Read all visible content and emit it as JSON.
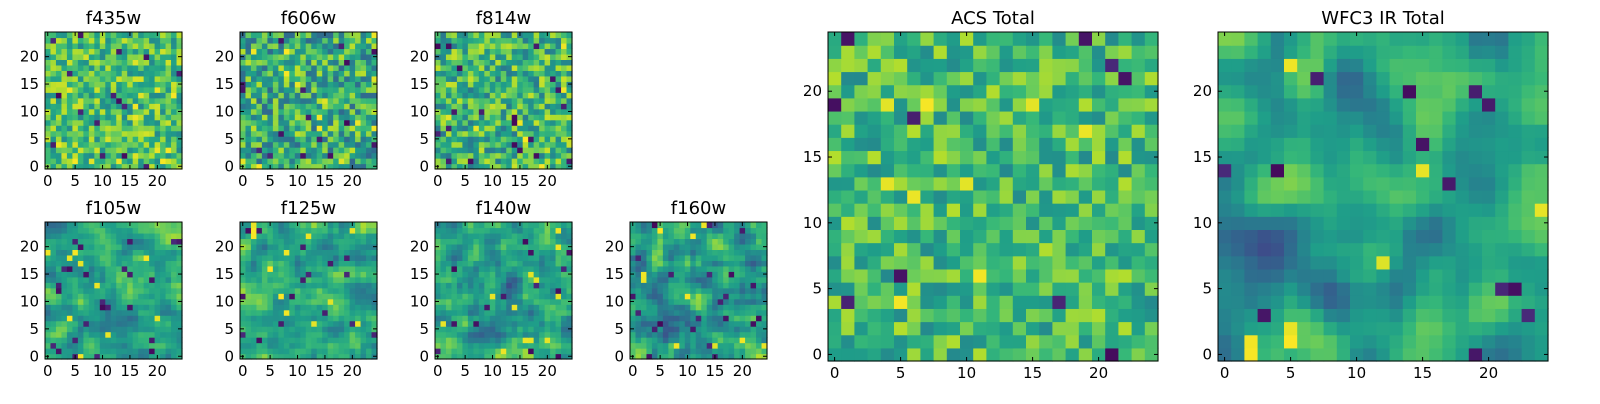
{
  "colormap": "viridis",
  "colors": {
    "frame": "#000000",
    "background": "#ffffff"
  },
  "chart_data": [
    {
      "type": "heatmap",
      "title": "f435w",
      "grid_size": 25,
      "xlim": [
        0,
        24
      ],
      "ylim": [
        0,
        24
      ],
      "xticks": [
        "0",
        "5",
        "10",
        "15",
        "20"
      ],
      "yticks": [
        "0",
        "5",
        "10",
        "15",
        "20"
      ],
      "intensity_mean": 0.7,
      "intensity_spread": 0.18,
      "smoothness": 0
    },
    {
      "type": "heatmap",
      "title": "f606w",
      "grid_size": 25,
      "xlim": [
        0,
        24
      ],
      "ylim": [
        0,
        24
      ],
      "xticks": [
        "0",
        "5",
        "10",
        "15",
        "20"
      ],
      "yticks": [
        "0",
        "5",
        "10",
        "15",
        "20"
      ],
      "intensity_mean": 0.62,
      "intensity_spread": 0.22,
      "smoothness": 0
    },
    {
      "type": "heatmap",
      "title": "f814w",
      "grid_size": 25,
      "xlim": [
        0,
        24
      ],
      "ylim": [
        0,
        24
      ],
      "xticks": [
        "0",
        "5",
        "10",
        "15",
        "20"
      ],
      "yticks": [
        "0",
        "5",
        "10",
        "15",
        "20"
      ],
      "intensity_mean": 0.66,
      "intensity_spread": 0.2,
      "smoothness": 0
    },
    {
      "type": "heatmap",
      "title": "f105w",
      "grid_size": 25,
      "xlim": [
        0,
        24
      ],
      "ylim": [
        0,
        24
      ],
      "xticks": [
        "0",
        "5",
        "10",
        "15",
        "20"
      ],
      "yticks": [
        "0",
        "5",
        "10",
        "15",
        "20"
      ],
      "intensity_mean": 0.6,
      "intensity_spread": 0.2,
      "smoothness": 1
    },
    {
      "type": "heatmap",
      "title": "f125w",
      "grid_size": 25,
      "xlim": [
        0,
        24
      ],
      "ylim": [
        0,
        24
      ],
      "xticks": [
        "0",
        "5",
        "10",
        "15",
        "20"
      ],
      "yticks": [
        "0",
        "5",
        "10",
        "15",
        "20"
      ],
      "intensity_mean": 0.63,
      "intensity_spread": 0.2,
      "smoothness": 1
    },
    {
      "type": "heatmap",
      "title": "f140w",
      "grid_size": 25,
      "xlim": [
        0,
        24
      ],
      "ylim": [
        0,
        24
      ],
      "xticks": [
        "0",
        "5",
        "10",
        "15",
        "20"
      ],
      "yticks": [
        "0",
        "5",
        "10",
        "15",
        "20"
      ],
      "intensity_mean": 0.55,
      "intensity_spread": 0.24,
      "smoothness": 1
    },
    {
      "type": "heatmap",
      "title": "f160w",
      "grid_size": 25,
      "xlim": [
        0,
        24
      ],
      "ylim": [
        0,
        24
      ],
      "xticks": [
        "0",
        "5",
        "10",
        "15",
        "20"
      ],
      "yticks": [
        "0",
        "5",
        "10",
        "15",
        "20"
      ],
      "intensity_mean": 0.58,
      "intensity_spread": 0.24,
      "smoothness": 1
    },
    {
      "type": "heatmap",
      "title": "ACS Total",
      "grid_size": 25,
      "xlim": [
        0,
        24
      ],
      "ylim": [
        0,
        24
      ],
      "xticks": [
        "0",
        "5",
        "10",
        "15",
        "20"
      ],
      "yticks": [
        "0",
        "5",
        "10",
        "15",
        "20"
      ],
      "intensity_mean": 0.68,
      "intensity_spread": 0.16,
      "smoothness": 0
    },
    {
      "type": "heatmap",
      "title": "WFC3 IR Total",
      "grid_size": 25,
      "xlim": [
        0,
        24
      ],
      "ylim": [
        0,
        24
      ],
      "xticks": [
        "0",
        "5",
        "10",
        "15",
        "20"
      ],
      "yticks": [
        "0",
        "5",
        "10",
        "15",
        "20"
      ],
      "intensity_mean": 0.52,
      "intensity_spread": 0.22,
      "smoothness": 2
    }
  ]
}
